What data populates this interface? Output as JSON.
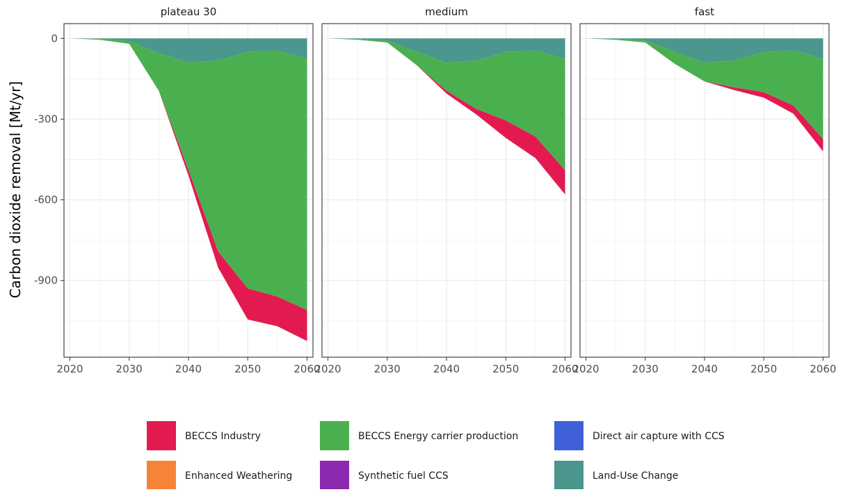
{
  "chart_data": {
    "type": "area",
    "stacked": true,
    "ylabel": "Carbon dioxide removal [Mt/yr]",
    "xlabel": "",
    "x": [
      2020,
      2025,
      2030,
      2035,
      2040,
      2045,
      2050,
      2055,
      2060
    ],
    "x_ticks": [
      2020,
      2030,
      2040,
      2050,
      2060
    ],
    "y_ticks": [
      0,
      -300,
      -600,
      -900
    ],
    "ylim": [
      -1185,
      55
    ],
    "xlim": [
      2019,
      2061
    ],
    "grid": true,
    "legend_position": "bottom",
    "series_meta": [
      {
        "name": "BECCS Industry",
        "color": "#E31A4F"
      },
      {
        "name": "BECCS Energy carrier production",
        "color": "#4AB04F"
      },
      {
        "name": "Direct air capture with CCS",
        "color": "#3F60D9"
      },
      {
        "name": "Enhanced Weathering",
        "color": "#F58338"
      },
      {
        "name": "Synthetic fuel CCS",
        "color": "#8B2AAE"
      },
      {
        "name": "Land-Use Change",
        "color": "#4B968D"
      }
    ],
    "panels": [
      {
        "title": "plateau 30",
        "series": [
          {
            "name": "Land-Use Change",
            "values": [
              0,
              -2,
              -10,
              -55,
              -90,
              -82,
              -50,
              -45,
              -75
            ]
          },
          {
            "name": "BECCS Energy carrier production",
            "values": [
              0,
              -3,
              -10,
              -140,
              -400,
              -710,
              -880,
              -915,
              -935
            ]
          },
          {
            "name": "BECCS Industry",
            "values": [
              0,
              0,
              0,
              0,
              -20,
              -60,
              -115,
              -110,
              -115
            ]
          }
        ]
      },
      {
        "title": "medium",
        "series": [
          {
            "name": "Land-Use Change",
            "values": [
              0,
              -2,
              -8,
              -50,
              -90,
              -82,
              -50,
              -45,
              -75
            ]
          },
          {
            "name": "BECCS Energy carrier production",
            "values": [
              0,
              -3,
              -7,
              -50,
              -105,
              -180,
              -255,
              -320,
              -415
            ]
          },
          {
            "name": "BECCS Industry",
            "values": [
              0,
              0,
              0,
              0,
              -10,
              -20,
              -65,
              -80,
              -90
            ]
          }
        ]
      },
      {
        "title": "fast",
        "series": [
          {
            "name": "Land-Use Change",
            "values": [
              0,
              -2,
              -8,
              -50,
              -90,
              -82,
              -50,
              -45,
              -75
            ]
          },
          {
            "name": "BECCS Energy carrier production",
            "values": [
              0,
              -3,
              -7,
              -45,
              -70,
              -100,
              -150,
              -205,
              -300
            ]
          },
          {
            "name": "BECCS Industry",
            "values": [
              0,
              0,
              0,
              0,
              0,
              -10,
              -20,
              -30,
              -45
            ]
          }
        ]
      }
    ]
  }
}
